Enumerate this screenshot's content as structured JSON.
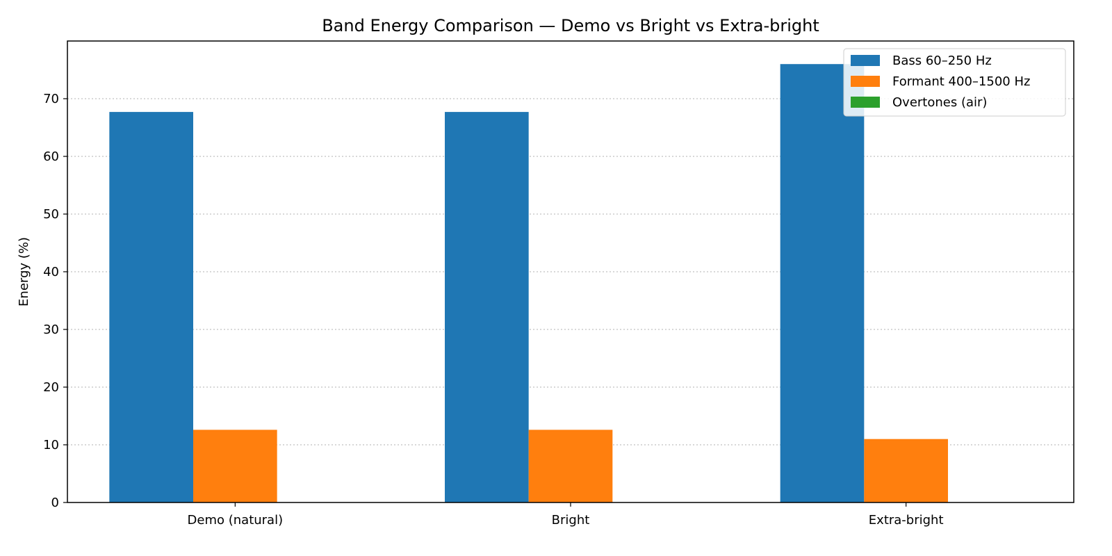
{
  "chart_data": {
    "type": "bar",
    "title": "Band Energy Comparison — Demo vs Bright vs Extra-bright",
    "xlabel": "",
    "ylabel": "Energy (%)",
    "categories": [
      "Demo (natural)",
      "Bright",
      "Extra-bright"
    ],
    "ylim": [
      0,
      80
    ],
    "yticks": [
      0,
      10,
      20,
      30,
      40,
      50,
      60,
      70
    ],
    "grid": "y, dotted",
    "legend_position": "top-right",
    "series": [
      {
        "name": "Bass 60–250 Hz",
        "color": "#1f77b4",
        "values": [
          67.7,
          67.7,
          76.0
        ]
      },
      {
        "name": "Formant 400–1500 Hz",
        "color": "#ff7f0e",
        "values": [
          12.6,
          12.6,
          11.0
        ]
      },
      {
        "name": "Overtones (air)",
        "color": "#2ca02c",
        "values": [
          0,
          0,
          0
        ]
      }
    ]
  }
}
